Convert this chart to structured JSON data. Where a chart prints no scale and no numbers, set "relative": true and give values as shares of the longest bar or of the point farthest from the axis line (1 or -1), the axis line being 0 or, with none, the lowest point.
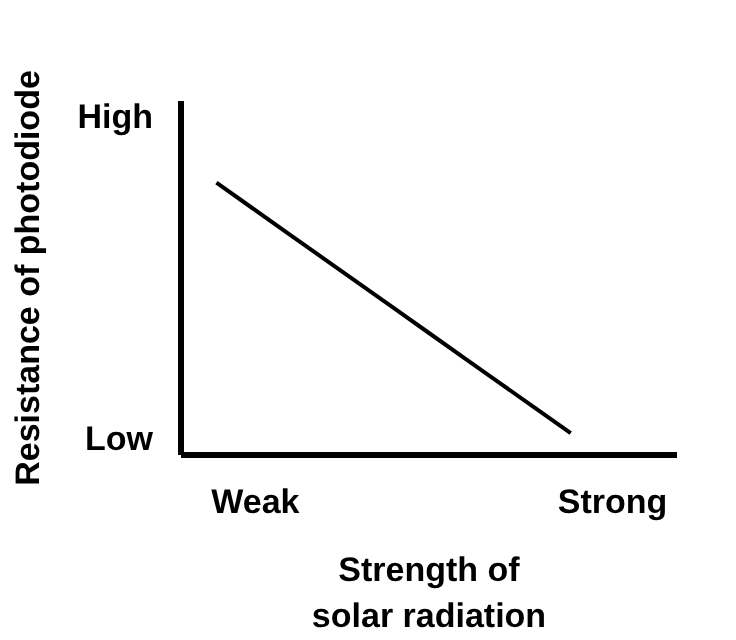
{
  "chart_data": {
    "type": "line",
    "xlabel": "Strength of\nsolar radiation",
    "ylabel": "Resistance of photodiode",
    "categories": [
      null,
      null,
      null,
      null,
      null,
      null,
      null,
      null,
      null,
      null,
      null,
      null,
      null,
      null,
      null
    ],
    "relative": true,
    "series": [
      {
        "color": "#000000",
        "values": [
          null,
          1,
          0.908,
          0.816,
          0.724,
          0.632,
          0.54,
          0.448,
          0.356,
          0.264,
          0.172,
          0.08,
          null,
          null,
          null
        ]
      }
    ],
    "annotations": [
      "High",
      "Low",
      "Weak",
      "Strong"
    ],
    "marker": "none",
    "line_style": "solid"
  }
}
